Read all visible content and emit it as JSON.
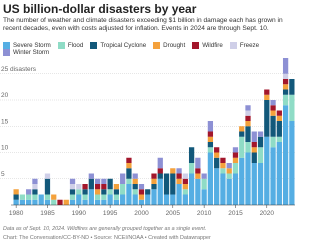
{
  "chart_data": {
    "type": "stacked-bar",
    "title": "US billion-dollar disasters by year",
    "subtitle": "The number of weather and climate disasters exceeding $1 billion in damage each has grown in recent decades, even with costs adjusted for inflation. Events in 2024 are through Sept. 10.",
    "x": [
      1980,
      1981,
      1982,
      1983,
      1984,
      1985,
      1986,
      1987,
      1988,
      1989,
      1990,
      1991,
      1992,
      1993,
      1994,
      1995,
      1996,
      1997,
      1998,
      1999,
      2000,
      2001,
      2002,
      2003,
      2004,
      2005,
      2006,
      2007,
      2008,
      2009,
      2010,
      2011,
      2012,
      2013,
      2014,
      2015,
      2016,
      2017,
      2018,
      2019,
      2020,
      2021,
      2022,
      2023,
      2024
    ],
    "xlim": [
      1979.5,
      2024.5
    ],
    "xticks": [
      1980,
      1985,
      1990,
      1995,
      2000,
      2005,
      2010,
      2015,
      2020
    ],
    "ylim": [
      0,
      28
    ],
    "yticks": [
      5,
      10,
      15,
      20,
      {
        "value": 25,
        "label": "25 disasters"
      }
    ],
    "grid": true,
    "series": [
      {
        "name": "Severe Storm",
        "color": "#55aee3",
        "values": [
          1,
          1,
          1,
          1,
          2,
          1,
          0,
          0,
          0,
          1,
          2,
          1,
          3,
          1,
          1,
          2,
          1,
          2,
          4,
          2,
          1,
          2,
          3,
          5,
          2,
          2,
          4,
          2,
          6,
          5,
          3,
          10,
          7,
          6,
          5,
          6,
          9,
          10,
          8,
          8,
          13,
          11,
          12,
          19,
          16
        ]
      },
      {
        "name": "Flood",
        "color": "#8fdcc6",
        "values": [
          0,
          1,
          1,
          1,
          0,
          1,
          1,
          0,
          0,
          1,
          1,
          1,
          0,
          1,
          1,
          1,
          1,
          2,
          1,
          1,
          0,
          0,
          0,
          0,
          0,
          0,
          0,
          1,
          2,
          0,
          2,
          1,
          0,
          1,
          1,
          2,
          4,
          2,
          0,
          3,
          0,
          2,
          1,
          2,
          5
        ]
      },
      {
        "name": "Tropical Cyclone",
        "color": "#12587a",
        "values": [
          1,
          0,
          0,
          1,
          0,
          3,
          0,
          0,
          0,
          1,
          0,
          1,
          2,
          0,
          1,
          2,
          1,
          0,
          2,
          1,
          0,
          1,
          1,
          1,
          4,
          4,
          0,
          0,
          3,
          0,
          0,
          1,
          2,
          0,
          0,
          0,
          1,
          3,
          2,
          2,
          7,
          4,
          3,
          1,
          3
        ]
      },
      {
        "name": "Drought",
        "color": "#f4a13c",
        "values": [
          1,
          0,
          0,
          0,
          0,
          0,
          1,
          0,
          1,
          0,
          0,
          0,
          0,
          1,
          0,
          0,
          1,
          0,
          1,
          1,
          1,
          0,
          1,
          0,
          0,
          1,
          1,
          1,
          0,
          1,
          0,
          1,
          1,
          1,
          1,
          1,
          1,
          1,
          1,
          0,
          1,
          1,
          1,
          1,
          0
        ]
      },
      {
        "name": "Wildfire",
        "color": "#a3162b",
        "values": [
          0,
          0,
          0,
          0,
          0,
          0,
          0,
          1,
          0,
          0,
          0,
          1,
          0,
          1,
          1,
          0,
          0,
          0,
          1,
          0,
          1,
          0,
          1,
          1,
          0,
          0,
          1,
          1,
          0,
          1,
          0,
          1,
          1,
          1,
          0,
          1,
          0,
          1,
          1,
          0,
          1,
          1,
          1,
          1,
          0
        ]
      },
      {
        "name": "Freeze",
        "color": "#cfcfe8",
        "values": [
          0,
          0,
          0,
          1,
          0,
          1,
          0,
          0,
          0,
          1,
          1,
          0,
          0,
          0,
          0,
          0,
          0,
          0,
          0,
          0,
          0,
          0,
          0,
          0,
          0,
          0,
          0,
          1,
          0,
          0,
          0,
          0,
          0,
          0,
          0,
          0,
          0,
          1,
          0,
          0,
          0,
          0,
          0,
          1,
          0
        ]
      },
      {
        "name": "Winter Storm",
        "color": "#8d90d4",
        "values": [
          0,
          0,
          1,
          1,
          0,
          0,
          0,
          0,
          0,
          1,
          0,
          0,
          1,
          1,
          1,
          0,
          0,
          2,
          0,
          1,
          1,
          0,
          0,
          2,
          0,
          0,
          1,
          0,
          0,
          2,
          1,
          2,
          0,
          0,
          1,
          1,
          0,
          1,
          2,
          1,
          0,
          1,
          0,
          3,
          0
        ]
      }
    ],
    "notes": "Data as of Sept. 10, 2024. Wildfires are generally grouped together as a single event.",
    "credits": "Chart: The Conversation/CC-BY-ND • Source: NCEI/NOAA • Created with Datawrapper"
  }
}
